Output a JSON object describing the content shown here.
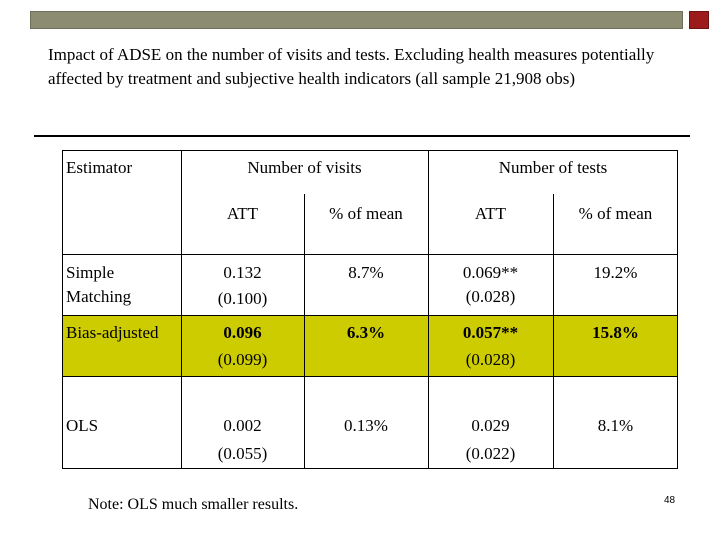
{
  "slide": {
    "title": "Impact of ADSE on the number of visits and tests. Excluding health measures potentially affected by treatment and subjective health indicators (all sample 21,908 obs)",
    "note": "Note: OLS much smaller results.",
    "page_number": "48"
  },
  "table": {
    "header": {
      "estimator": "Estimator",
      "group_visits": "Number of visits",
      "group_tests": "Number of tests",
      "att_visits": "ATT",
      "pct_visits": "% of mean",
      "att_tests": "ATT",
      "pct_tests": "% of mean"
    },
    "rows": [
      {
        "estimator": "Simple Matching",
        "visits_att": "0.132",
        "visits_se": "(0.100)",
        "visits_pct": "8.7%",
        "tests_att": "0.069**",
        "tests_se": "(0.028)",
        "tests_pct": "19.2%",
        "highlight": false
      },
      {
        "estimator": "Bias-adjusted",
        "visits_att": "0.096",
        "visits_se": "(0.099)",
        "visits_pct": "6.3%",
        "tests_att": "0.057**",
        "tests_se": "(0.028)",
        "tests_pct": "15.8%",
        "highlight": true
      },
      {
        "estimator": "OLS",
        "visits_att": "0.002",
        "visits_se": "(0.055)",
        "visits_pct": "0.13%",
        "tests_att": "0.029",
        "tests_se": "(0.022)",
        "tests_pct": "8.1%",
        "highlight": false
      }
    ]
  },
  "colors": {
    "top_bar": "#8c8c73",
    "top_square": "#9c1c1c",
    "highlight_row": "#cccc00"
  }
}
